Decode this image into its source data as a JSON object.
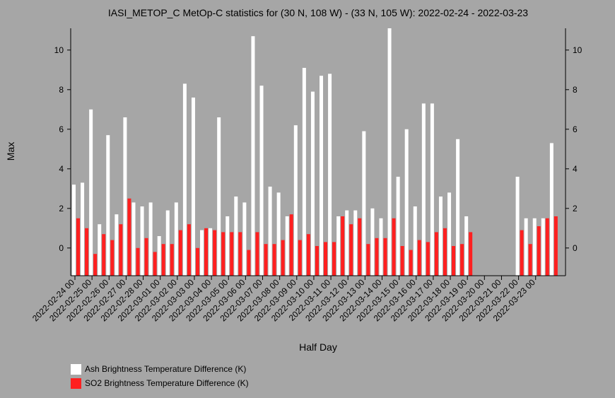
{
  "chart_data": {
    "type": "bar",
    "title": "IASI_METOP_C MetOp-C statistics for (30 N, 108 W) - (33 N, 105 W): 2022-02-24 - 2022-03-23",
    "xlabel": "Half Day",
    "ylabel": "Max",
    "ylim": [
      -1.4,
      11.1
    ],
    "yticks": [
      0,
      2,
      4,
      6,
      8,
      10
    ],
    "grid": false,
    "legend_position": "bottom-left",
    "x_tick_labels": [
      "2022-02-24 00",
      "2022-02-25 00",
      "2022-02-26 00",
      "2022-02-27 00",
      "2022-02-28 00",
      "2022-03-01 00",
      "2022-03-02 00",
      "2022-03-03 00",
      "2022-03-04 00",
      "2022-03-05 00",
      "2022-03-06 00",
      "2022-03-07 00",
      "2022-03-08 00",
      "2022-03-09 00",
      "2022-03-10 00",
      "2022-03-11 00",
      "2022-03-12 00",
      "2022-03-13 00",
      "2022-03-14 00",
      "2022-03-15 00",
      "2022-03-16 00",
      "2022-03-17 00",
      "2022-03-18 00",
      "2022-03-19 00",
      "2022-03-20 00",
      "2022-03-21 00",
      "2022-03-22 00",
      "2022-03-23 00"
    ],
    "series": [
      {
        "name": "Ash Brightness Temperature Difference (K)",
        "color": "#ffffff",
        "values": [
          3.2,
          3.3,
          7.0,
          1.2,
          5.7,
          1.7,
          6.6,
          2.3,
          2.1,
          2.3,
          0.6,
          1.9,
          2.3,
          8.3,
          7.6,
          0.9,
          1.0,
          6.6,
          1.6,
          2.6,
          2.3,
          10.7,
          8.2,
          3.1,
          2.8,
          1.6,
          6.2,
          9.1,
          7.9,
          8.7,
          8.8,
          1.6,
          1.9,
          1.9,
          5.9,
          2.0,
          1.5,
          11.1,
          3.6,
          6.0,
          2.1,
          7.3,
          7.3,
          2.6,
          2.8,
          5.5,
          1.6,
          null,
          null,
          null,
          null,
          null,
          3.6,
          1.5,
          1.5,
          1.5,
          5.3,
          null
        ]
      },
      {
        "name": "SO2 Brightness Temperature Difference (K)",
        "color": "#ff2020",
        "values": [
          1.5,
          1.0,
          -0.3,
          0.7,
          0.4,
          1.2,
          2.5,
          0.0,
          0.5,
          -0.2,
          0.2,
          0.2,
          0.9,
          1.2,
          0.0,
          1.0,
          0.9,
          0.8,
          0.8,
          0.8,
          -0.1,
          0.8,
          0.2,
          0.2,
          0.4,
          1.7,
          0.4,
          0.7,
          0.1,
          0.3,
          0.3,
          1.6,
          1.2,
          1.5,
          0.2,
          0.5,
          0.5,
          1.5,
          0.1,
          -0.1,
          0.4,
          0.3,
          0.8,
          1.0,
          0.1,
          0.2,
          0.8,
          null,
          null,
          null,
          null,
          null,
          0.9,
          0.2,
          1.1,
          1.5,
          1.6,
          null
        ]
      }
    ]
  }
}
